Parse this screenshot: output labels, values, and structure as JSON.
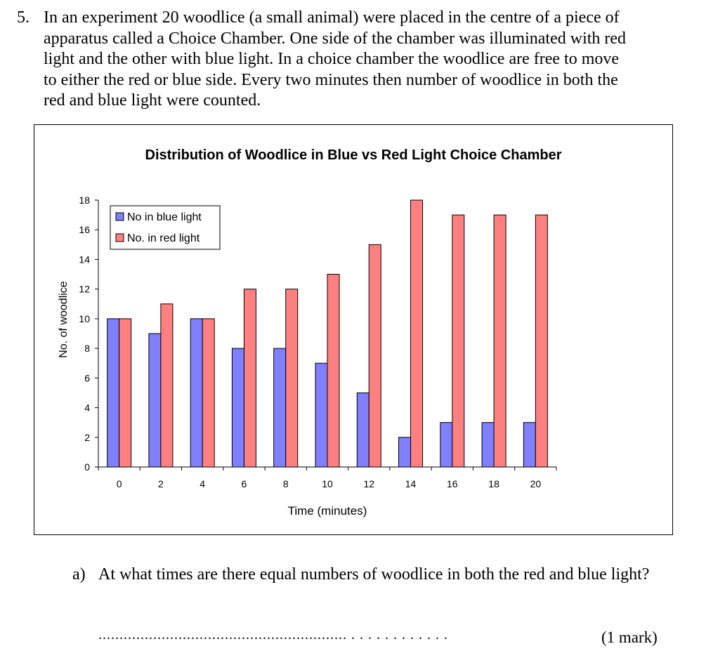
{
  "question": {
    "number": "5.",
    "intro_lines": [
      "In an experiment 20 woodlice (a small animal) were placed in the centre of a piece of",
      "apparatus called a Choice Chamber.  One side of the chamber was illuminated with red",
      "light and the other with blue light.  In a choice chamber the woodlice are free to move",
      "to either the red or blue side.  Every two minutes then number of woodlice in both the",
      "red and blue light were counted."
    ]
  },
  "chart_data": {
    "type": "bar",
    "title": "Distribution of Woodlice in Blue vs Red Light Choice Chamber",
    "xlabel": "Time (minutes)",
    "ylabel": "No. of woodlice",
    "categories": [
      "0",
      "2",
      "4",
      "6",
      "8",
      "10",
      "12",
      "14",
      "16",
      "18",
      "20"
    ],
    "series": [
      {
        "name": "No in blue light",
        "color": "#8080ff",
        "values": [
          10,
          9,
          10,
          8,
          8,
          7,
          5,
          2,
          3,
          3,
          3
        ]
      },
      {
        "name": "No. in red light",
        "color": "#ff8080",
        "values": [
          10,
          11,
          10,
          12,
          12,
          13,
          15,
          18,
          17,
          17,
          17
        ]
      }
    ],
    "ylim": [
      0,
      18
    ],
    "yticks": [
      0,
      2,
      4,
      6,
      8,
      10,
      12,
      14,
      16,
      18
    ],
    "grid": false,
    "legend": "top-left"
  },
  "part_a": {
    "label": "a)",
    "text": "At what times are there equal numbers of woodlice in both the red and blue light?",
    "answer_line": "........................................................... . . . . . . . . . . . .",
    "marks": "(1 mark)"
  }
}
